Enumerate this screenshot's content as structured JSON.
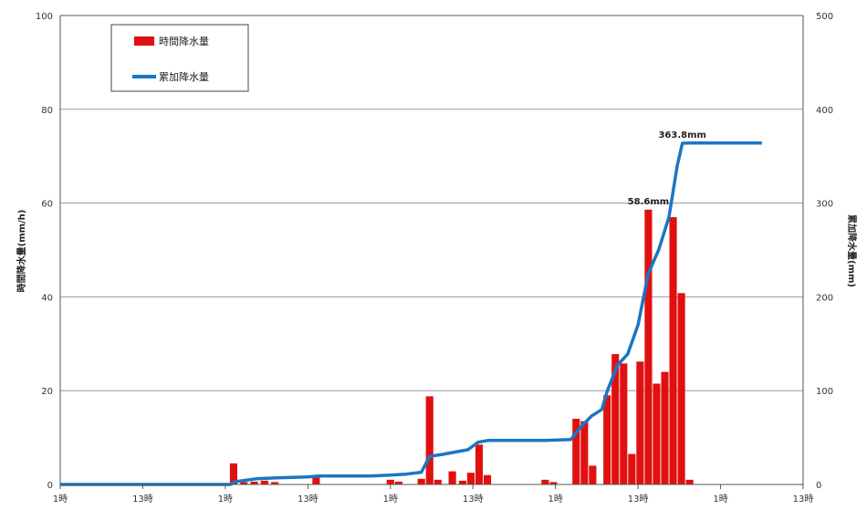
{
  "chart_data": {
    "type": "bar+line",
    "series": [
      {
        "name": "時間降水量",
        "type": "bar",
        "axis": "left",
        "color": "#e01010",
        "points": [
          {
            "x": 16.8,
            "y": 4.5
          },
          {
            "x": 17.8,
            "y": 0.5
          },
          {
            "x": 18.8,
            "y": 0.6
          },
          {
            "x": 19.8,
            "y": 0.8
          },
          {
            "x": 20.8,
            "y": 0.5
          },
          {
            "x": 24.8,
            "y": 1.5
          },
          {
            "x": 32.0,
            "y": 1.0
          },
          {
            "x": 32.8,
            "y": 0.6
          },
          {
            "x": 35.0,
            "y": 1.2
          },
          {
            "x": 35.8,
            "y": 18.8
          },
          {
            "x": 36.6,
            "y": 1.0
          },
          {
            "x": 38.0,
            "y": 2.8
          },
          {
            "x": 39.0,
            "y": 0.8
          },
          {
            "x": 39.8,
            "y": 2.5
          },
          {
            "x": 40.6,
            "y": 8.5
          },
          {
            "x": 41.4,
            "y": 2.0
          },
          {
            "x": 47.0,
            "y": 1.0
          },
          {
            "x": 47.8,
            "y": 0.5
          },
          {
            "x": 50.0,
            "y": 14.0
          },
          {
            "x": 50.8,
            "y": 13.5
          },
          {
            "x": 51.6,
            "y": 4.0
          },
          {
            "x": 53.0,
            "y": 19.0
          },
          {
            "x": 53.8,
            "y": 27.8
          },
          {
            "x": 54.6,
            "y": 25.8
          },
          {
            "x": 55.4,
            "y": 6.5
          },
          {
            "x": 56.2,
            "y": 26.2
          },
          {
            "x": 57.0,
            "y": 58.6
          },
          {
            "x": 57.8,
            "y": 21.5
          },
          {
            "x": 58.6,
            "y": 24.0
          },
          {
            "x": 59.4,
            "y": 57.0
          },
          {
            "x": 60.2,
            "y": 40.8
          },
          {
            "x": 61.0,
            "y": 1.0
          }
        ]
      },
      {
        "name": "累加降水量",
        "type": "line",
        "axis": "right",
        "color": "#1a76c4",
        "points": [
          {
            "x": 0,
            "y": 0
          },
          {
            "x": 16.5,
            "y": 0
          },
          {
            "x": 17,
            "y": 3
          },
          {
            "x": 19,
            "y": 6
          },
          {
            "x": 21,
            "y": 7
          },
          {
            "x": 24,
            "y": 8
          },
          {
            "x": 25,
            "y": 9
          },
          {
            "x": 30,
            "y": 9
          },
          {
            "x": 32,
            "y": 10
          },
          {
            "x": 33.5,
            "y": 11
          },
          {
            "x": 35,
            "y": 13
          },
          {
            "x": 35.8,
            "y": 30
          },
          {
            "x": 37,
            "y": 32
          },
          {
            "x": 38.5,
            "y": 35
          },
          {
            "x": 39.5,
            "y": 37
          },
          {
            "x": 40.5,
            "y": 45
          },
          {
            "x": 41.5,
            "y": 47
          },
          {
            "x": 47,
            "y": 47
          },
          {
            "x": 49.5,
            "y": 48
          },
          {
            "x": 50.5,
            "y": 62
          },
          {
            "x": 51.5,
            "y": 73
          },
          {
            "x": 52.5,
            "y": 80
          },
          {
            "x": 53,
            "y": 99
          },
          {
            "x": 54,
            "y": 127
          },
          {
            "x": 55,
            "y": 139
          },
          {
            "x": 56,
            "y": 170
          },
          {
            "x": 57,
            "y": 225
          },
          {
            "x": 58,
            "y": 250
          },
          {
            "x": 59,
            "y": 285
          },
          {
            "x": 59.8,
            "y": 340
          },
          {
            "x": 60.3,
            "y": 363.8
          },
          {
            "x": 61,
            "y": 364
          },
          {
            "x": 68,
            "y": 364
          }
        ]
      }
    ],
    "x_tick_labels": [
      "1時",
      "13時",
      "1時",
      "13時",
      "1時",
      "13時",
      "1時",
      "13時",
      "1時",
      "13時"
    ],
    "xlim": [
      0,
      72
    ],
    "y_left": {
      "label": "時間降水量(mm/h)",
      "range": [
        0,
        100
      ],
      "ticks": [
        "0",
        "20",
        "40",
        "60",
        "80",
        "100"
      ]
    },
    "y_right": {
      "label": "累加降水量(mm)",
      "range": [
        0,
        500
      ],
      "ticks": [
        "0",
        "100",
        "200",
        "300",
        "400",
        "500"
      ]
    },
    "annotations": [
      {
        "text": "58.6mm",
        "x": 57,
        "axis": "left",
        "y": 58.6
      },
      {
        "text": "363.8mm",
        "x": 60.3,
        "axis": "right",
        "y": 363.8
      }
    ],
    "legend": {
      "placement": "top-left"
    },
    "grid": true
  }
}
